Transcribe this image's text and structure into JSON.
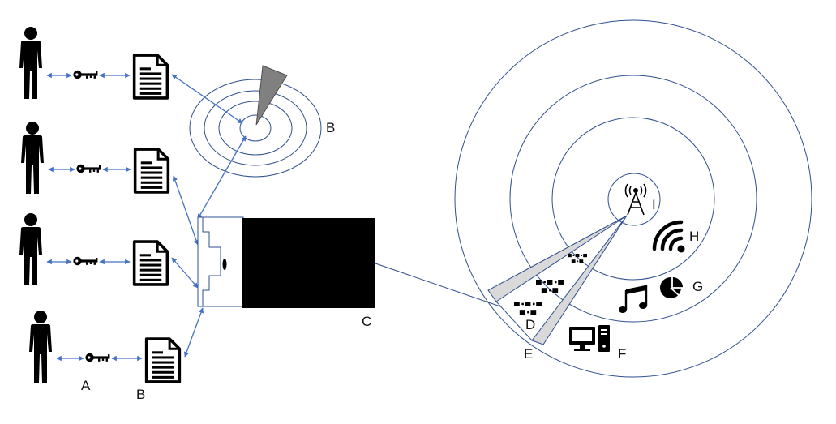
{
  "diagram": {
    "colors": {
      "line": "#4472c4",
      "ring": "#2f4f8f",
      "sector": "#808080",
      "wedge": "#d9d9d9",
      "figure": "#000000",
      "background": "#ffffff"
    },
    "left_group": {
      "user_count": 4,
      "label_key": "A",
      "label_document": "B"
    },
    "small_radar": {
      "label": "B"
    },
    "device": {
      "label": "C"
    },
    "large_radar": {
      "labels": {
        "inner_wedge": "D",
        "outer_wedge": "E",
        "computer": "F",
        "chart": "G",
        "wifi": "H",
        "antenna": "I"
      },
      "icons": [
        "antenna-icon",
        "wifi-icon",
        "pie-chart-icon",
        "music-note-icon",
        "computer-icon",
        "data-packet-icon"
      ]
    }
  }
}
